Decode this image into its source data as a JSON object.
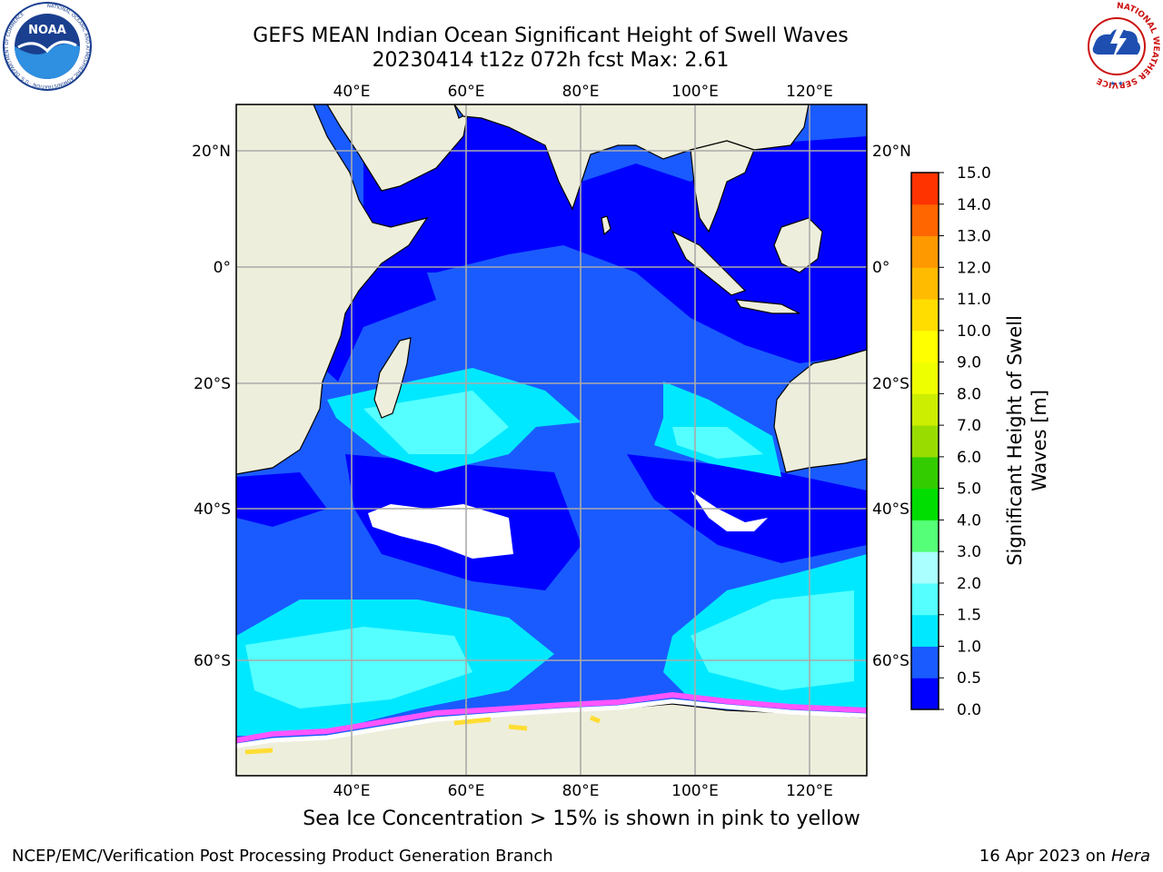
{
  "title": {
    "line1": "GEFS MEAN Indian Ocean Significant Height of Swell Waves",
    "line2": "20230414 t12z 072h fcst   Max: 2.61"
  },
  "map": {
    "lon_ticks": [
      "40°E",
      "60°E",
      "80°E",
      "100°E",
      "120°E"
    ],
    "lat_ticks_left": [
      "20°N",
      "0°",
      "20°S",
      "40°S",
      "60°S"
    ],
    "lat_ticks_right": [
      "20°N",
      "0°",
      "20°S",
      "40°S",
      "60°S"
    ],
    "grid": true,
    "land_color": "#eeeedc",
    "sea_ice_color_low": "#ff55ff",
    "sea_ice_color_high": "#ffdd33"
  },
  "colorbar": {
    "title_line1": "Significant Height of Swell",
    "title_line2": "Waves [m]",
    "levels": [
      "0.0",
      "0.5",
      "1.0",
      "1.5",
      "2.0",
      "3.0",
      "4.0",
      "5.0",
      "6.0",
      "7.0",
      "8.0",
      "9.0",
      "10.0",
      "11.0",
      "12.0",
      "13.0",
      "14.0",
      "15.0"
    ],
    "colors": [
      "#0000ff",
      "#1a5bff",
      "#00e8ff",
      "#55ffff",
      "#aaffff",
      "#55ff77",
      "#00dd00",
      "#33cc00",
      "#99dd00",
      "#ccee00",
      "#eeff00",
      "#ffff00",
      "#ffdd00",
      "#ffbb00",
      "#ff9900",
      "#ff6600",
      "#ff3300",
      "#ff0000"
    ]
  },
  "caption": "Sea Ice Concentration > 15% is shown in pink to yellow",
  "footer": {
    "left": "NCEP/EMC/Verification Post Processing Product Generation Branch",
    "right_prefix": "16 Apr 2023 on ",
    "right_host": "Hera"
  },
  "logos": {
    "noaa": "NOAA",
    "noaa_ring": "NATIONAL OCEANIC AND ATMOSPHERIC ADMINISTRATION · U.S. DEPARTMENT OF COMMERCE",
    "nws_ring": "NATIONAL WEATHER SERVICE"
  }
}
